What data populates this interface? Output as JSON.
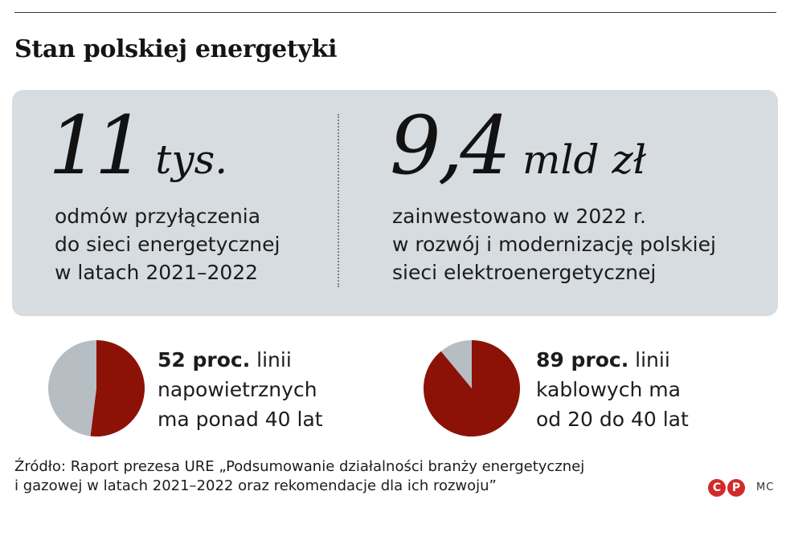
{
  "title": "Stan polskiej energetyki",
  "stats": {
    "left": {
      "number": "11",
      "unit": "tys.",
      "lines": [
        "odmów przyłączenia",
        "do sieci energetycznej",
        "w latach 2021–2022"
      ]
    },
    "right": {
      "number": "9,4",
      "unit": "mld zł",
      "lines": [
        "zainwestowano w 2022 r.",
        "w rozwój i modernizację polskiej",
        "sieci elektroenergetycznej"
      ]
    }
  },
  "chart_data": [
    {
      "type": "pie",
      "slices": [
        {
          "label": "52 proc.",
          "value": 52,
          "color": "#8c1208"
        },
        {
          "label": "",
          "value": 48,
          "color": "#b6bdc3"
        }
      ],
      "caption_bold": "52 proc.",
      "caption_lines": [
        " linii",
        "napowietrznych",
        "ma ponad 40 lat"
      ]
    },
    {
      "type": "pie",
      "slices": [
        {
          "label": "89 proc.",
          "value": 89,
          "color": "#8c1208"
        },
        {
          "label": "",
          "value": 11,
          "color": "#b6bdc3"
        }
      ],
      "caption_bold": "89 proc.",
      "caption_lines": [
        " linii",
        "kablowych ma",
        "od 20 do 40 lat"
      ]
    }
  ],
  "source": {
    "line1": "Źródło: Raport prezesa URE „Podsumowanie działalności branży energetycznej",
    "line2": "i gazowej w latach 2021–2022 oraz rekomendacje dla ich rozwoju”"
  },
  "logo": {
    "letter1": "C",
    "letter2": "P",
    "color": "#d22a2a"
  },
  "credit": "MC"
}
